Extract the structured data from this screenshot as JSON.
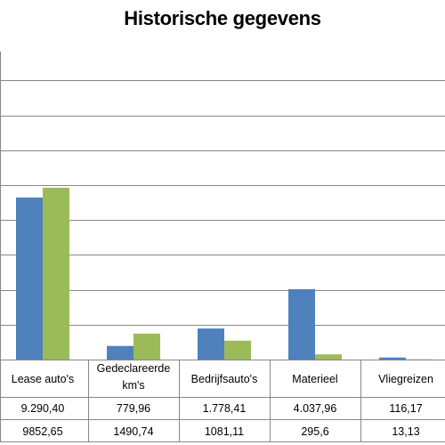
{
  "chart_data": {
    "type": "bar",
    "title": "Historische gegevens",
    "categories": [
      "Lease auto's",
      "Gedeclareerde km's",
      "Bedrijfsauto's",
      "Materieel",
      "Vliegreizen"
    ],
    "category_lines": [
      [
        "Lease auto's"
      ],
      [
        "Gedeclareerde",
        "km's"
      ],
      [
        "Bedrijfsauto's"
      ],
      [
        "Materieel"
      ],
      [
        "Vliegreizen"
      ]
    ],
    "series": [
      {
        "values": [
          9290.4,
          779.96,
          1778.41,
          4037.96,
          116.17
        ],
        "color": "#4F81BD"
      },
      {
        "values": [
          9852.65,
          1490.74,
          1081.11,
          295.6,
          13.13
        ],
        "color": "#9BBB59"
      }
    ],
    "table_rows": [
      [
        "9.290,40",
        "779,96",
        "1.778,41",
        "4.037,96",
        "116,17"
      ],
      [
        "9852,65",
        "1490,74",
        "1081,11",
        "295,6",
        "13,13"
      ]
    ],
    "ylim": [
      0,
      20000
    ],
    "grid": true,
    "legend": "none"
  }
}
